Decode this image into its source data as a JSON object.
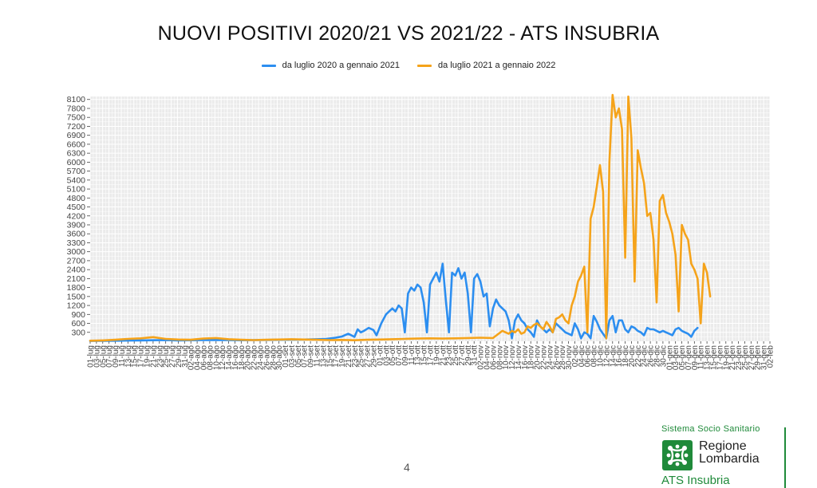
{
  "chart_data": {
    "type": "line",
    "title": "NUOVI POSITIVI 2020/21 VS 2021/22 - ATS INSUBRIA",
    "xlabel": "",
    "ylabel": "",
    "ylim": [
      0,
      8200
    ],
    "y_ticks": [
      300,
      600,
      900,
      1200,
      1500,
      1800,
      2100,
      2400,
      2700,
      3000,
      3300,
      3600,
      3900,
      4200,
      4500,
      4800,
      5100,
      5400,
      5700,
      6000,
      6300,
      6600,
      6900,
      7200,
      7500,
      7800,
      8100
    ],
    "x_tick_labels": [
      "01-lug",
      "03-lug",
      "05-lug",
      "07-lug",
      "09-lug",
      "11-lug",
      "13-lug",
      "15-lug",
      "17-lug",
      "19-lug",
      "21-lug",
      "23-lug",
      "25-lug",
      "27-lug",
      "29-lug",
      "31-lug",
      "02-ago",
      "04-ago",
      "06-ago",
      "08-ago",
      "10-ago",
      "12-ago",
      "14-ago",
      "16-ago",
      "18-ago",
      "20-ago",
      "22-ago",
      "24-ago",
      "26-ago",
      "28-ago",
      "30-ago",
      "01-set",
      "03-set",
      "05-set",
      "07-set",
      "09-set",
      "11-set",
      "13-set",
      "15-set",
      "17-set",
      "19-set",
      "21-set",
      "23-set",
      "25-set",
      "27-set",
      "29-set",
      "01-ott",
      "03-ott",
      "05-ott",
      "07-ott",
      "09-ott",
      "11-ott",
      "13-ott",
      "15-ott",
      "17-ott",
      "19-ott",
      "21-ott",
      "23-ott",
      "25-ott",
      "27-ott",
      "29-ott",
      "31-ott",
      "02-nov",
      "04-nov",
      "06-nov",
      "08-nov",
      "10-nov",
      "12-nov",
      "14-nov",
      "16-nov",
      "18-nov",
      "20-nov",
      "22-nov",
      "24-nov",
      "26-nov",
      "28-nov",
      "30-nov",
      "02-dic",
      "04-dic",
      "06-dic",
      "08-dic",
      "10-dic",
      "12-dic",
      "14-dic",
      "16-dic",
      "18-dic",
      "20-dic",
      "22-dic",
      "24-dic",
      "26-dic",
      "28-dic",
      "30-dic",
      "01-gen",
      "03-gen",
      "05-gen",
      "07-gen",
      "09-gen",
      "11-gen",
      "13-gen",
      "15-gen",
      "17-gen",
      "19-gen",
      "21-gen",
      "23-gen",
      "25-gen",
      "27-gen",
      "29-gen",
      "31-gen",
      "02-feb"
    ],
    "grid": true,
    "legend_position": "top",
    "series": [
      {
        "name": "da luglio 2020 a gennaio 2021",
        "color": "#2c8ef0",
        "points": [
          [
            0,
            10
          ],
          [
            8,
            15
          ],
          [
            16,
            20
          ],
          [
            24,
            25
          ],
          [
            32,
            30
          ],
          [
            40,
            35
          ],
          [
            48,
            40
          ],
          [
            56,
            30
          ],
          [
            64,
            35
          ],
          [
            72,
            40
          ],
          [
            80,
            45
          ],
          [
            88,
            40
          ],
          [
            96,
            35
          ],
          [
            104,
            40
          ],
          [
            112,
            45
          ],
          [
            120,
            50
          ],
          [
            128,
            55
          ],
          [
            136,
            60
          ],
          [
            144,
            70
          ],
          [
            150,
            80
          ],
          [
            156,
            120
          ],
          [
            160,
            160
          ],
          [
            164,
            250
          ],
          [
            168,
            150
          ],
          [
            170,
            400
          ],
          [
            172,
            300
          ],
          [
            174,
            350
          ],
          [
            177,
            450
          ],
          [
            180,
            380
          ],
          [
            182,
            200
          ],
          [
            185,
            600
          ],
          [
            188,
            900
          ],
          [
            190,
            1000
          ],
          [
            192,
            1100
          ],
          [
            194,
            1000
          ],
          [
            196,
            1200
          ],
          [
            198,
            1100
          ],
          [
            200,
            300
          ],
          [
            202,
            1600
          ],
          [
            204,
            1800
          ],
          [
            206,
            1700
          ],
          [
            208,
            1900
          ],
          [
            210,
            1800
          ],
          [
            212,
            1300
          ],
          [
            214,
            300
          ],
          [
            216,
            1900
          ],
          [
            218,
            2100
          ],
          [
            220,
            2300
          ],
          [
            222,
            2000
          ],
          [
            224,
            2600
          ],
          [
            226,
            1400
          ],
          [
            228,
            300
          ],
          [
            230,
            2300
          ],
          [
            232,
            2200
          ],
          [
            234,
            2450
          ],
          [
            236,
            2100
          ],
          [
            238,
            2300
          ],
          [
            240,
            1600
          ],
          [
            242,
            300
          ],
          [
            244,
            2100
          ],
          [
            246,
            2250
          ],
          [
            248,
            2000
          ],
          [
            250,
            1500
          ],
          [
            252,
            1600
          ],
          [
            254,
            500
          ],
          [
            256,
            1100
          ],
          [
            258,
            1400
          ],
          [
            260,
            1200
          ],
          [
            262,
            1100
          ],
          [
            264,
            1000
          ],
          [
            266,
            700
          ],
          [
            268,
            100
          ],
          [
            270,
            700
          ],
          [
            272,
            900
          ],
          [
            274,
            700
          ],
          [
            276,
            600
          ],
          [
            278,
            400
          ],
          [
            280,
            300
          ],
          [
            282,
            150
          ],
          [
            284,
            700
          ],
          [
            286,
            500
          ],
          [
            288,
            400
          ],
          [
            290,
            300
          ],
          [
            292,
            400
          ],
          [
            294,
            300
          ],
          [
            296,
            600
          ],
          [
            298,
            500
          ],
          [
            300,
            400
          ],
          [
            302,
            300
          ],
          [
            304,
            250
          ],
          [
            306,
            200
          ],
          [
            308,
            600
          ],
          [
            310,
            400
          ],
          [
            312,
            100
          ],
          [
            314,
            300
          ],
          [
            316,
            250
          ],
          [
            318,
            100
          ],
          [
            320,
            850
          ],
          [
            322,
            650
          ],
          [
            324,
            400
          ],
          [
            326,
            250
          ],
          [
            328,
            100
          ],
          [
            330,
            700
          ],
          [
            332,
            850
          ],
          [
            334,
            300
          ],
          [
            336,
            700
          ],
          [
            338,
            700
          ],
          [
            340,
            400
          ],
          [
            342,
            300
          ],
          [
            344,
            500
          ],
          [
            346,
            450
          ],
          [
            348,
            350
          ],
          [
            350,
            300
          ],
          [
            352,
            200
          ],
          [
            354,
            450
          ],
          [
            356,
            400
          ],
          [
            358,
            400
          ],
          [
            360,
            350
          ],
          [
            362,
            300
          ],
          [
            364,
            350
          ],
          [
            366,
            300
          ],
          [
            368,
            250
          ],
          [
            370,
            200
          ],
          [
            372,
            400
          ],
          [
            374,
            450
          ],
          [
            376,
            350
          ],
          [
            378,
            300
          ],
          [
            380,
            250
          ],
          [
            382,
            150
          ],
          [
            384,
            350
          ],
          [
            386,
            450
          ]
        ]
      },
      {
        "name": "da luglio 2021 a gennaio 2022",
        "color": "#f5a31a",
        "points": [
          [
            0,
            20
          ],
          [
            8,
            30
          ],
          [
            16,
            50
          ],
          [
            24,
            80
          ],
          [
            32,
            100
          ],
          [
            40,
            140
          ],
          [
            48,
            80
          ],
          [
            56,
            60
          ],
          [
            64,
            50
          ],
          [
            72,
            90
          ],
          [
            80,
            110
          ],
          [
            88,
            70
          ],
          [
            96,
            50
          ],
          [
            104,
            40
          ],
          [
            112,
            50
          ],
          [
            120,
            60
          ],
          [
            128,
            70
          ],
          [
            136,
            60
          ],
          [
            144,
            50
          ],
          [
            152,
            40
          ],
          [
            160,
            45
          ],
          [
            168,
            35
          ],
          [
            176,
            50
          ],
          [
            184,
            60
          ],
          [
            192,
            70
          ],
          [
            200,
            80
          ],
          [
            208,
            90
          ],
          [
            216,
            100
          ],
          [
            224,
            90
          ],
          [
            232,
            100
          ],
          [
            240,
            110
          ],
          [
            248,
            120
          ],
          [
            256,
            110
          ],
          [
            262,
            350
          ],
          [
            264,
            300
          ],
          [
            266,
            250
          ],
          [
            268,
            350
          ],
          [
            270,
            300
          ],
          [
            272,
            400
          ],
          [
            274,
            250
          ],
          [
            276,
            300
          ],
          [
            278,
            500
          ],
          [
            280,
            450
          ],
          [
            282,
            550
          ],
          [
            284,
            600
          ],
          [
            286,
            500
          ],
          [
            288,
            400
          ],
          [
            290,
            650
          ],
          [
            292,
            500
          ],
          [
            294,
            300
          ],
          [
            296,
            750
          ],
          [
            298,
            800
          ],
          [
            300,
            900
          ],
          [
            302,
            700
          ],
          [
            304,
            600
          ],
          [
            306,
            1200
          ],
          [
            308,
            1500
          ],
          [
            310,
            2000
          ],
          [
            312,
            2200
          ],
          [
            314,
            2500
          ],
          [
            316,
            300
          ],
          [
            318,
            4100
          ],
          [
            320,
            4500
          ],
          [
            322,
            5200
          ],
          [
            324,
            5900
          ],
          [
            326,
            5000
          ],
          [
            328,
            100
          ],
          [
            330,
            6000
          ],
          [
            332,
            8300
          ],
          [
            334,
            7500
          ],
          [
            336,
            7800
          ],
          [
            338,
            7100
          ],
          [
            340,
            2800
          ],
          [
            342,
            8200
          ],
          [
            344,
            6800
          ],
          [
            346,
            2000
          ],
          [
            348,
            6400
          ],
          [
            350,
            5800
          ],
          [
            352,
            5300
          ],
          [
            354,
            4200
          ],
          [
            356,
            4300
          ],
          [
            358,
            3400
          ],
          [
            360,
            1300
          ],
          [
            362,
            4700
          ],
          [
            364,
            4900
          ],
          [
            366,
            4300
          ],
          [
            368,
            4000
          ],
          [
            370,
            3600
          ],
          [
            372,
            2900
          ],
          [
            374,
            1000
          ],
          [
            376,
            3900
          ],
          [
            378,
            3600
          ],
          [
            380,
            3400
          ],
          [
            382,
            2600
          ],
          [
            384,
            2400
          ],
          [
            386,
            2100
          ],
          [
            388,
            600
          ],
          [
            390,
            2600
          ],
          [
            392,
            2300
          ],
          [
            394,
            1500
          ]
        ]
      }
    ]
  },
  "page_number": "4",
  "logo": {
    "top_text": "Sistema Socio Sanitario",
    "name_line1": "Regione",
    "name_line2": "Lombardia",
    "bottom_text": "ATS Insubria",
    "color": "#1f8a3a"
  }
}
